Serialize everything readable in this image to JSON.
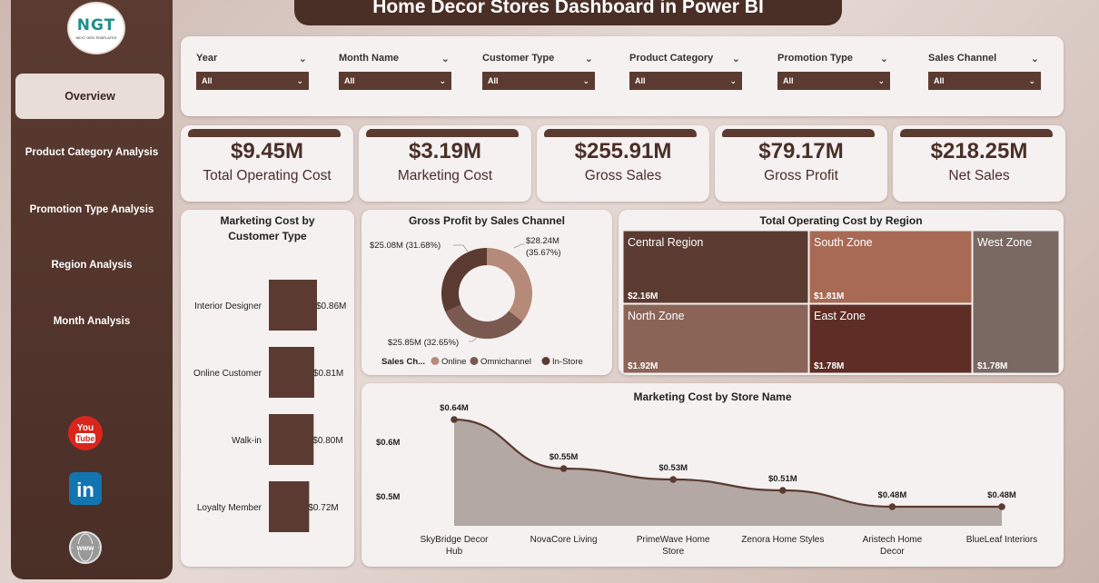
{
  "title": "Home Decor Stores Dashboard in Power BI",
  "logo": {
    "text": "NGT",
    "subtext": "NEXT GEN TEMPLATES"
  },
  "sidebar": {
    "items": [
      {
        "label": "Overview",
        "active": true
      },
      {
        "label": "Product Category Analysis"
      },
      {
        "label": "Promotion Type Analysis"
      },
      {
        "label": "Region Analysis"
      },
      {
        "label": "Month Analysis"
      }
    ],
    "social": [
      {
        "icon": "youtube-icon",
        "label": "You Tube"
      },
      {
        "icon": "linkedin-icon",
        "label": "in"
      },
      {
        "icon": "website-icon",
        "label": "www"
      }
    ]
  },
  "filters": [
    {
      "label": "Year",
      "value": "All"
    },
    {
      "label": "Month Name",
      "value": "All"
    },
    {
      "label": "Customer Type",
      "value": "All"
    },
    {
      "label": "Product Category",
      "value": "All"
    },
    {
      "label": "Promotion Type",
      "value": "All"
    },
    {
      "label": "Sales Channel",
      "value": "All"
    }
  ],
  "kpis": [
    {
      "value": "$9.45M",
      "label": "Total Operating Cost"
    },
    {
      "value": "$3.19M",
      "label": "Marketing Cost"
    },
    {
      "value": "$255.91M",
      "label": "Gross Sales"
    },
    {
      "value": "$79.17M",
      "label": "Gross Profit"
    },
    {
      "value": "$218.25M",
      "label": "Net Sales"
    }
  ],
  "colors": {
    "dark": "#5b3b31",
    "medium": "#7a5a50",
    "light": "#b68a78",
    "accent": "#a86a55"
  },
  "chart_data": [
    {
      "type": "bar",
      "title": "Marketing Cost by Customer Type",
      "categories": [
        "Interior Designer",
        "Online Customer",
        "Walk-in",
        "Loyalty Member"
      ],
      "values": [
        0.86,
        0.81,
        0.8,
        0.72
      ],
      "labels": [
        "$0.86M",
        "$0.81M",
        "$0.80M",
        "$0.72M"
      ],
      "xlim": [
        0,
        0.86
      ]
    },
    {
      "type": "pie",
      "title": "Gross Profit by Sales Channel",
      "legend_title": "Sales Ch...",
      "slices": [
        {
          "name": "Online",
          "value": 28.24,
          "label": "$28.24M",
          "pct": "(35.67%)",
          "color": "#b68a78"
        },
        {
          "name": "Omnichannel",
          "value": 25.85,
          "label": "$25.85M (32.65%)",
          "color": "#7a5a50"
        },
        {
          "name": "In-Store",
          "value": 25.08,
          "label": "$25.08M (31.68%)",
          "color": "#5b3b31"
        }
      ]
    },
    {
      "type": "heatmap",
      "title": "Total Operating Cost by Region",
      "cells": [
        {
          "name": "Central Region",
          "value": 2.16,
          "label": "$2.16M",
          "color": "#5b3b31"
        },
        {
          "name": "South Zone",
          "value": 1.81,
          "label": "$1.81M",
          "color": "#a86a55"
        },
        {
          "name": "West Zone",
          "value": 1.78,
          "label": "$1.78M",
          "color": "#7a6862"
        },
        {
          "name": "North Zone",
          "value": 1.92,
          "label": "$1.92M",
          "color": "#8b6458"
        },
        {
          "name": "East Zone",
          "value": 1.78,
          "label": "$1.78M",
          "color": "#5e2e26"
        }
      ]
    },
    {
      "type": "area",
      "title": "Marketing Cost by Store Name",
      "categories": [
        "SkyBridge Decor Hub",
        "NovaCore Living",
        "PrimeWave Home Store",
        "Zenora Home Styles",
        "Aristech Home Decor",
        "BlueLeaf Interiors"
      ],
      "values": [
        0.64,
        0.55,
        0.53,
        0.51,
        0.48,
        0.48
      ],
      "labels": [
        "$0.64M",
        "$0.55M",
        "$0.53M",
        "$0.51M",
        "$0.48M",
        "$0.48M"
      ],
      "yticks": [
        "$0.6M",
        "$0.5M"
      ],
      "ylim": [
        0.45,
        0.66
      ]
    }
  ]
}
